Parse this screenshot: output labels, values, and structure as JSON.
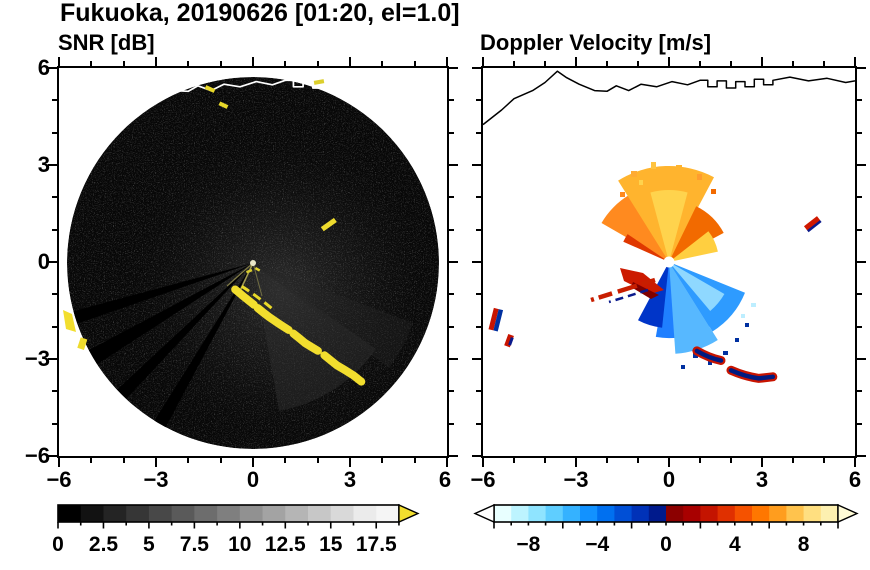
{
  "title": "Fukuoka, 20190626 [01:20, el=1.0]",
  "panels": {
    "snr": {
      "label": "SNR [dB]",
      "x_ticks": [
        "−6",
        "−3",
        "0",
        "3",
        "6"
      ],
      "y_ticks": [
        "6",
        "3",
        "0",
        "−3",
        "−6"
      ],
      "colorbar": {
        "labels": [
          "0",
          "2.5",
          "5",
          "7.5",
          "10",
          "12.5",
          "15",
          "17.5"
        ]
      }
    },
    "doppler": {
      "label": "Doppler Velocity [m/s]",
      "x_ticks": [
        "−6",
        "−3",
        "0",
        "3",
        "6"
      ],
      "colorbar": {
        "labels": [
          "−8",
          "−4",
          "0",
          "4",
          "8"
        ]
      }
    }
  },
  "chart_data": [
    {
      "type": "heatmap",
      "panel": "left",
      "title": "SNR [dB]",
      "xlim": [
        -6,
        6
      ],
      "ylim": [
        -6,
        6
      ],
      "x_ticks": [
        -6,
        -3,
        0,
        3,
        6
      ],
      "y_ticks": [
        -6,
        -3,
        0,
        3,
        6
      ],
      "grid": false,
      "colorbar": {
        "range": [
          0,
          18.75
        ],
        "step": 1.25,
        "label_values": [
          0,
          2.5,
          5,
          7.5,
          10,
          12.5,
          15,
          17.5
        ],
        "colors": [
          "#000000",
          "#121212",
          "#242424",
          "#363636",
          "#484848",
          "#5a5a5a",
          "#6d6d6d",
          "#7f7f7f",
          "#919191",
          "#a3a3a3",
          "#b5b5b5",
          "#c7c7c7",
          "#d9d9d9",
          "#ebebeb",
          "#f5f5f5"
        ],
        "overflow_color": "#f2de2e"
      },
      "features": [
        "circular radar scan disk of radius about 5.7 centered on the radar at (0,0), shown as dark low-SNR noise",
        "bright point echo at the radar location (0,0)",
        "dark beam-blockage sectors radiating from the center toward the southwest",
        "faint brighter haze east and southeast of the center",
        "saturated (>17.5 dB, yellow) echo band arcing from about (-0.5,-0.9) through (1.6,-2.5) to (3.3,-3.7)",
        "saturated echo patch at the western edge near (-5.7,-1.9) and a smaller one near (-5.3,-2.5)",
        "small saturated echo near (2.4,1.2) and small echoes along the northern coastline near y = 5.4",
        "coastline traced in white across the top of the disk"
      ]
    },
    {
      "type": "heatmap",
      "panel": "right",
      "title": "Doppler Velocity [m/s]",
      "xlim": [
        -6,
        6
      ],
      "ylim": [
        -6,
        6
      ],
      "x_ticks": [
        -6,
        -3,
        0,
        3,
        6
      ],
      "y_ticks": [
        -6,
        -3,
        0,
        3,
        6
      ],
      "grid": false,
      "colorbar": {
        "range": [
          -10,
          10
        ],
        "step": 1,
        "label_values": [
          -8,
          -4,
          0,
          4,
          8
        ],
        "colors": [
          "#e8ffff",
          "#bdf4ff",
          "#8fe4ff",
          "#5fceff",
          "#35b2ff",
          "#1292ff",
          "#0070f0",
          "#004fd6",
          "#0032b8",
          "#001a8c",
          "#8c0000",
          "#a80000",
          "#c41400",
          "#e03000",
          "#f55200",
          "#ff7700",
          "#ff9d1e",
          "#ffc34d",
          "#ffdf80",
          "#fdf0b0"
        ],
        "underflow_color": "#ffffff",
        "overflow_color": "#fffbd6"
      },
      "features": [
        "white gap (no data) at the radar location (0,0)",
        "positive velocities of roughly +2 to +9 m/s (orange to yellow fan) north through northeast of the radar out to radius about 3",
        "negative velocities of roughly -2 to -9 m/s (blue to cyan fan) east-southeast of the radar out to radius about 2.5",
        "strong positive patch around +4 to +6 m/s (red, with dark-red fringe) just west-southwest of the radar",
        "red streaks extending southwest toward (-2.5,-1.1)",
        "echo band with adjacent navy and red values arcing from (0.9,-2.8) to (3.3,-3.6)",
        "isolated red/navy echo near (4.6,1.2); small red/blue echoes at the western edge near (-5.6,-1.8) and (-5.2,-2.5)",
        "coastline traced in black across the top of the panel"
      ]
    }
  ]
}
